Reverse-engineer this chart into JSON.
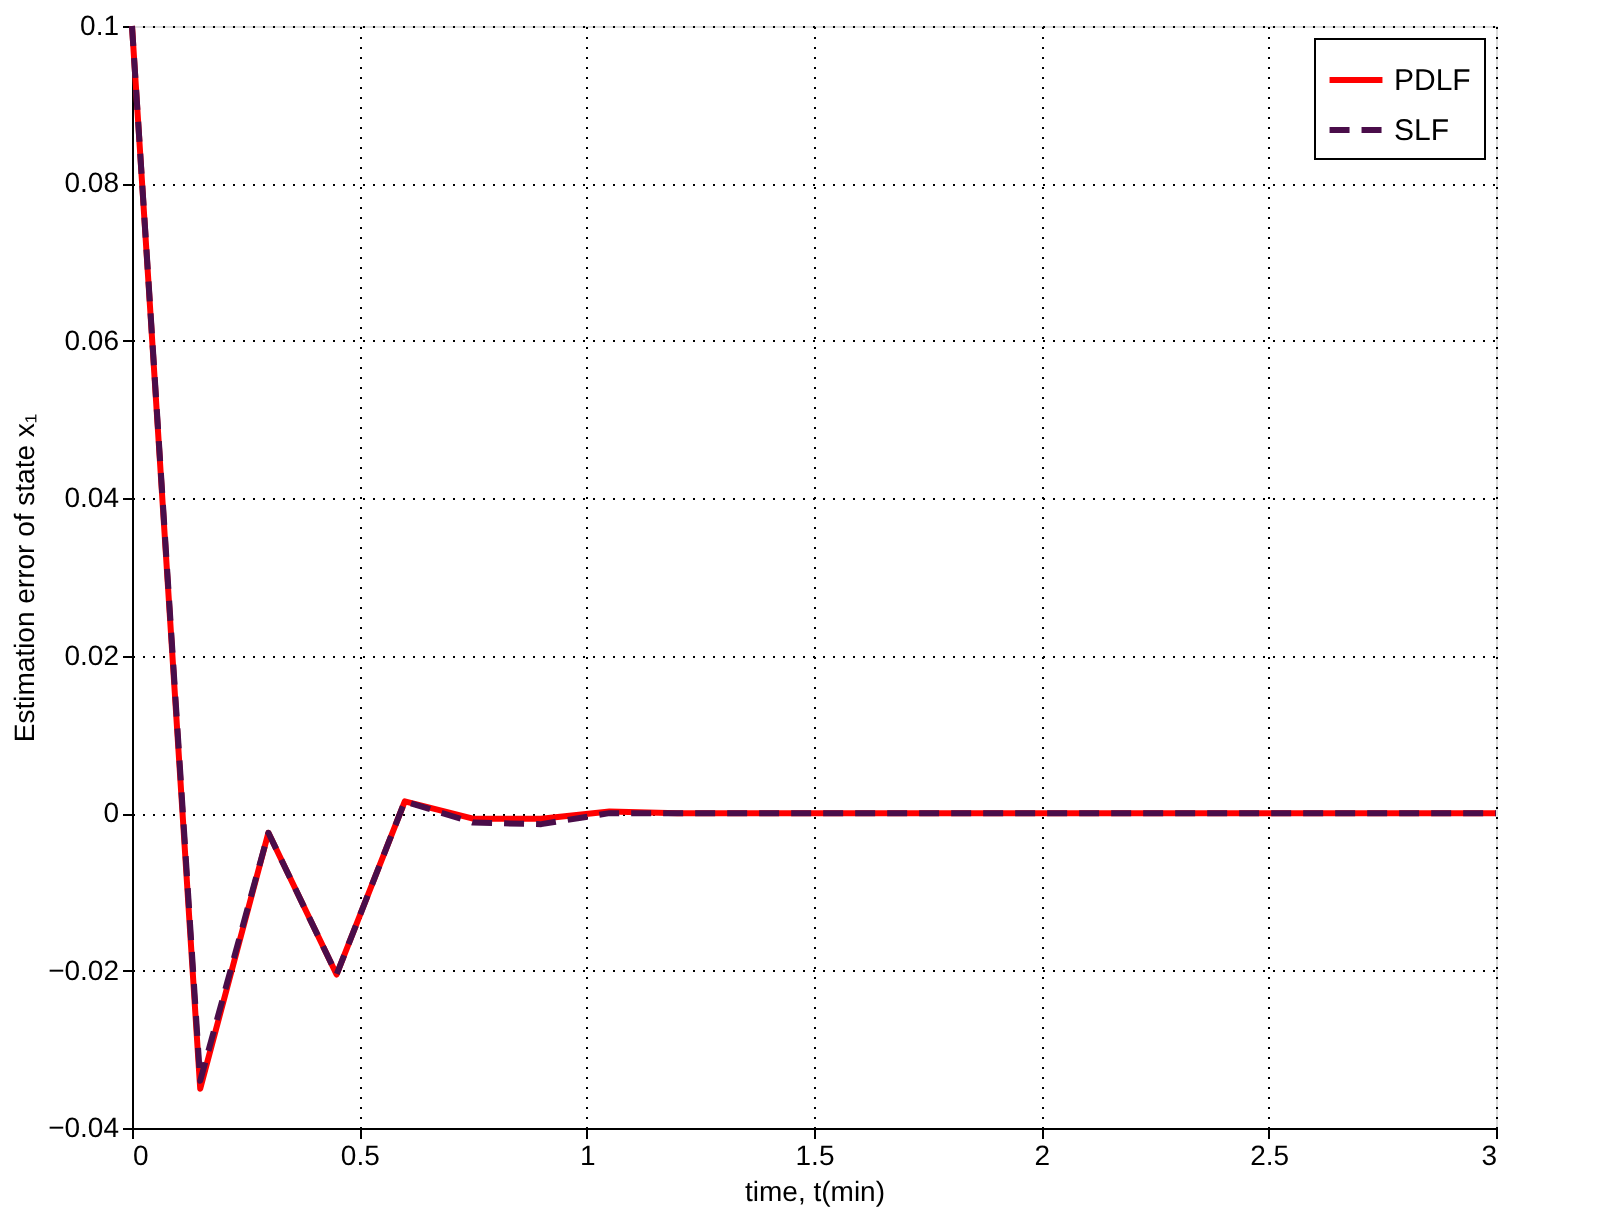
{
  "chart_data": {
    "type": "line",
    "xlabel": "time, t(min)",
    "ylabel": "Estimation error of state x₁",
    "x": [
      0,
      0.15,
      0.3,
      0.45,
      0.6,
      0.75,
      0.9,
      1.05,
      1.2,
      1.35,
      1.5,
      1.65,
      1.8,
      1.95,
      2.1,
      2.25,
      2.4,
      2.55,
      2.7,
      2.85,
      3
    ],
    "series": [
      {
        "name": "PDLF",
        "color": "#ff0000",
        "line_style": "solid",
        "values": [
          0.1,
          -0.035,
          -0.0025,
          -0.0205,
          0.0015,
          -0.0007,
          -0.0007,
          0.0002,
          0,
          0,
          0,
          0,
          0,
          0,
          0,
          0,
          0,
          0,
          0,
          0,
          0
        ]
      },
      {
        "name": "SLF",
        "color": "#4a0d4a",
        "line_style": "dashed",
        "values": [
          0.1,
          -0.034,
          -0.0025,
          -0.0205,
          0.0015,
          -0.0012,
          -0.0014,
          0,
          0,
          0,
          0,
          0,
          0,
          0,
          0,
          0,
          0,
          0,
          0,
          0,
          0
        ]
      }
    ],
    "xlim": [
      0,
      3
    ],
    "xticks": [
      0,
      0.5,
      1,
      1.5,
      2,
      2.5,
      3
    ],
    "ylim": [
      -0.04,
      0.1
    ],
    "yticks": [
      -0.04,
      -0.02,
      0,
      0.02,
      0.04,
      0.06,
      0.08,
      0.1
    ],
    "grid": true,
    "legend": "top right",
    "marker": "none"
  }
}
